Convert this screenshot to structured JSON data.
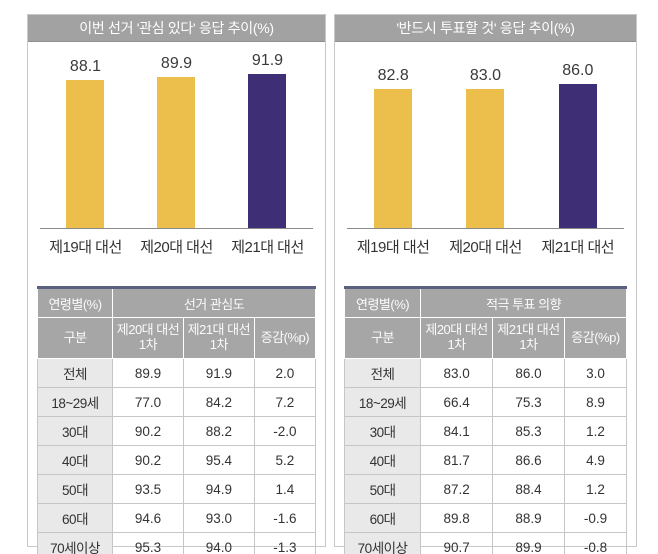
{
  "chart_data": [
    {
      "type": "bar",
      "title": "이번 선거 '관심 있다' 응답 추이(%)",
      "categories": [
        "제19대 대선",
        "제20대 대선",
        "제21대 대선"
      ],
      "values": [
        88.1,
        89.9,
        91.9
      ],
      "bar_colors": [
        "#ECBE4B",
        "#ECBE4B",
        "#3D2E75"
      ],
      "ylim": [
        0,
        100
      ],
      "grid": false,
      "legend": false,
      "value_labels": [
        "88.1",
        "89.9",
        "91.9"
      ]
    },
    {
      "type": "bar",
      "title": "'반드시 투표할 것' 응답 추이(%)",
      "categories": [
        "제19대 대선",
        "제20대 대선",
        "제21대 대선"
      ],
      "values": [
        82.8,
        83.0,
        86.0
      ],
      "bar_colors": [
        "#ECBE4B",
        "#ECBE4B",
        "#3D2E75"
      ],
      "ylim": [
        0,
        100
      ],
      "grid": false,
      "legend": false,
      "value_labels": [
        "82.8",
        "83.0",
        "86.0"
      ]
    }
  ],
  "tables": [
    {
      "corner_header": "연령별(%)",
      "group_header": "선거 관심도",
      "sub_headers": [
        "구분",
        "제20대 대선\n1차",
        "제21대 대선\n1차",
        "증감(%p)"
      ],
      "rows": [
        [
          "전체",
          "89.9",
          "91.9",
          "2.0"
        ],
        [
          "18~29세",
          "77.0",
          "84.2",
          "7.2"
        ],
        [
          "30대",
          "90.2",
          "88.2",
          "-2.0"
        ],
        [
          "40대",
          "90.2",
          "95.4",
          "5.2"
        ],
        [
          "50대",
          "93.5",
          "94.9",
          "1.4"
        ],
        [
          "60대",
          "94.6",
          "93.0",
          "-1.6"
        ],
        [
          "70세이상",
          "95.3",
          "94.0",
          "-1.3"
        ]
      ]
    },
    {
      "corner_header": "연령별(%)",
      "group_header": "적극 투표 의향",
      "sub_headers": [
        "구분",
        "제20대 대선\n1차",
        "제21대 대선\n1차",
        "증감(%p)"
      ],
      "rows": [
        [
          "전체",
          "83.0",
          "86.0",
          "3.0"
        ],
        [
          "18~29세",
          "66.4",
          "75.3",
          "8.9"
        ],
        [
          "30대",
          "84.1",
          "85.3",
          "1.2"
        ],
        [
          "40대",
          "81.7",
          "86.6",
          "4.9"
        ],
        [
          "50대",
          "87.2",
          "88.4",
          "1.2"
        ],
        [
          "60대",
          "89.8",
          "88.9",
          "-0.9"
        ],
        [
          "70세이상",
          "90.7",
          "89.9",
          "-0.8"
        ]
      ]
    }
  ],
  "colors": {
    "bar_yellow": "#ECBE4B",
    "bar_purple": "#3D2E75",
    "title_bar_gray": "#A2A2A2",
    "table_header_gray": "#A6A6A6",
    "table_accent_navy": "#5A6080",
    "row_label_bg": "#E9E9E9"
  }
}
